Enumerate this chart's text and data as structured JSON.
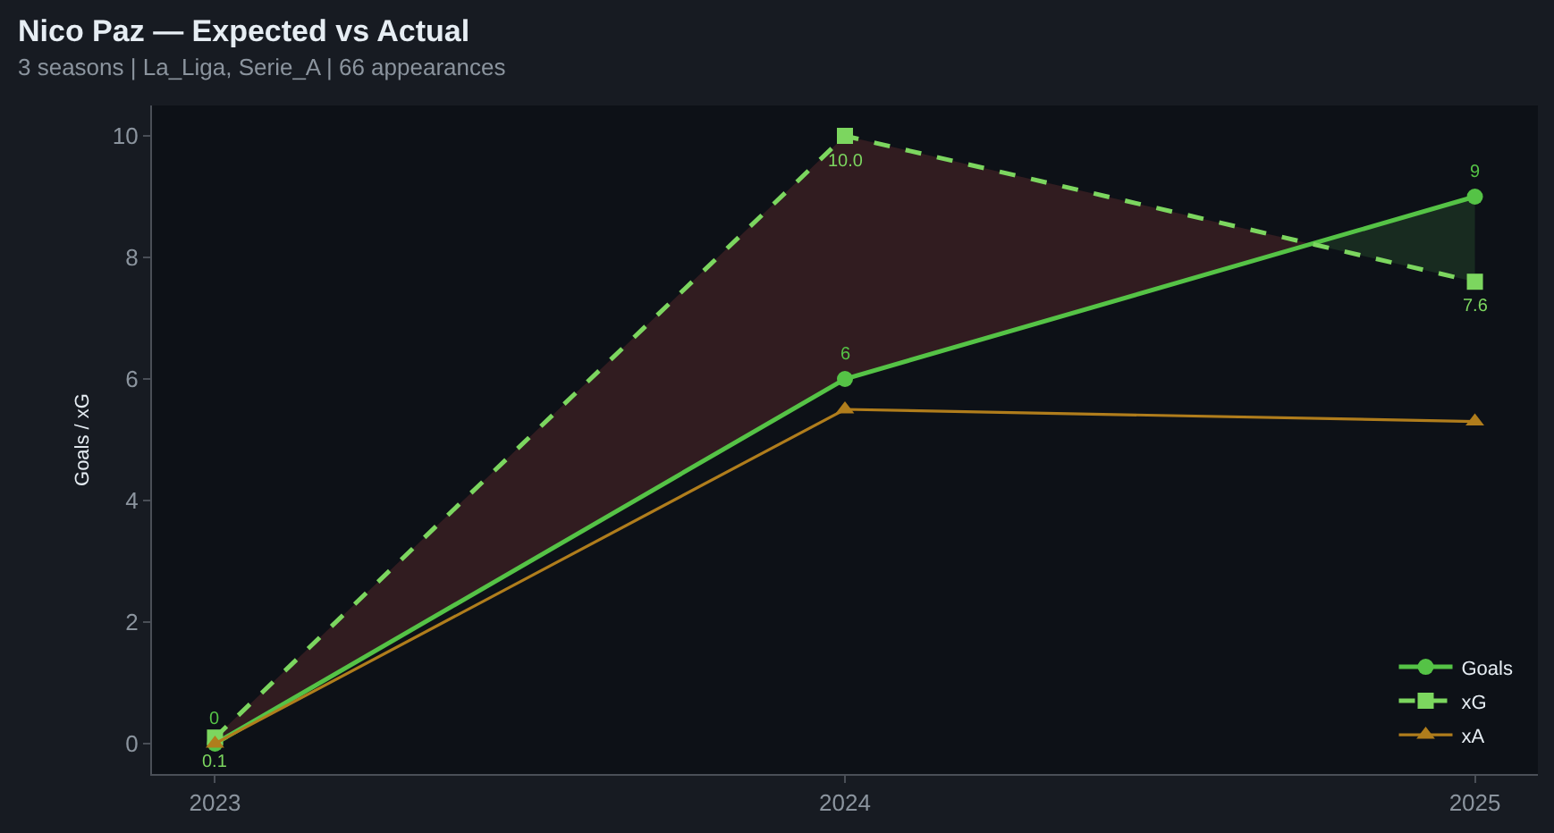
{
  "chart_data": {
    "type": "line",
    "title": "Nico Paz — Expected vs Actual",
    "subtitle": "3 seasons | La_Liga, Serie_A | 66 appearances",
    "ylabel": "Goals / xG",
    "x": [
      2023,
      2024,
      2025
    ],
    "xlim": [
      2022.9,
      2025.1
    ],
    "xticks": [
      2023,
      2024,
      2025
    ],
    "ylim": [
      -0.5,
      10.5
    ],
    "yticks": [
      0,
      2,
      4,
      6,
      8,
      10
    ],
    "legend": "bottom right",
    "series": [
      {
        "name": "Goals",
        "color": "#55c346",
        "values": [
          0,
          6,
          9
        ],
        "marker": "circle",
        "line_style": "solid",
        "value_labels": [
          "0",
          "6",
          "9"
        ]
      },
      {
        "name": "xG",
        "color": "#7cd65f",
        "values": [
          0.1,
          10.0,
          7.6
        ],
        "marker": "square",
        "line_style": "dashed",
        "value_labels": [
          "0.1",
          "10.0",
          "7.6"
        ]
      },
      {
        "name": "xA",
        "color": "#b07d1c",
        "values": [
          0,
          5.5,
          5.3
        ],
        "marker": "triangle",
        "line_style": "solid"
      },
      {
        "color": "#311c20",
        "x": [
          2023,
          2024,
          2024.74
        ],
        "values": [
          null,
          null,
          null
        ],
        "lower": [
          0,
          6,
          8.22
        ],
        "upper": [
          0.1,
          10.0,
          8.22
        ]
      },
      {
        "color": "#182b20",
        "x": [
          2024.74,
          2025
        ],
        "values": [
          null,
          null
        ],
        "lower": [
          8.22,
          7.6
        ],
        "upper": [
          8.22,
          9
        ]
      }
    ]
  }
}
